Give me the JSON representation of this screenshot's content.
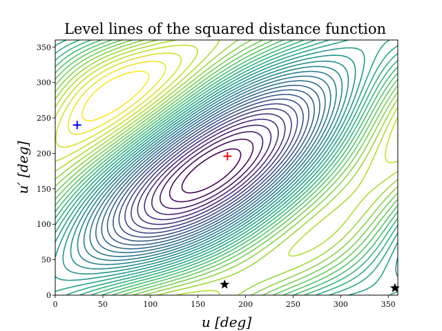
{
  "chart_data": {
    "type": "contour",
    "title": "Level lines of the squared distance function",
    "xlabel": "u [deg]",
    "ylabel": "u′ [deg]",
    "xlim": [
      0,
      360
    ],
    "ylim": [
      0,
      360
    ],
    "x_ticks": [
      0,
      50,
      100,
      150,
      200,
      250,
      300,
      350
    ],
    "y_ticks": [
      0,
      50,
      100,
      150,
      200,
      250,
      300,
      350
    ],
    "colormap": "viridis",
    "grid": false,
    "markers": [
      {
        "name": "maximum",
        "symbol": "plus",
        "color": "#ff0000",
        "x": 181,
        "y": 196
      },
      {
        "name": "minimum",
        "symbol": "plus",
        "color": "#0000ff",
        "x": 23,
        "y": 240
      },
      {
        "name": "saddle-1",
        "symbol": "star",
        "color": "#000000",
        "x": 178,
        "y": 15
      },
      {
        "name": "saddle-2",
        "symbol": "star",
        "color": "#000000",
        "x": 357,
        "y": 10
      }
    ]
  }
}
